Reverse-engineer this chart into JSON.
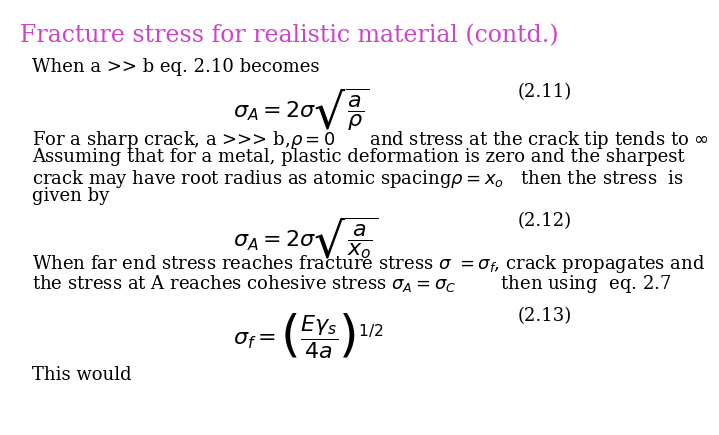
{
  "title": "Fracture stress for realistic material (contd.)",
  "title_color": "#cc44cc",
  "background_color": "#ffffff",
  "title_fontsize": 17,
  "body_fontsize": 13,
  "math_fontsize": 13,
  "line1": "When a >> b eq. 2.10 becomes",
  "eq211": "$\\sigma_A = 2\\sigma\\sqrt{\\dfrac{a}{\\rho}}$",
  "eq211_label": "(2.11)",
  "line2a": "For a sharp crack, a >>> b,$\\rho = 0$      and stress at the crack tip tends to $\\infty$",
  "line2b": "Assuming that for a metal, plastic deformation is zero and the sharpest",
  "line2c": "crack may have root radius as atomic spacing$\\rho = x_o$   then the stress  is",
  "line2d": "given by",
  "eq212": "$\\sigma_A = 2\\sigma\\sqrt{\\dfrac{a}{x_o}}$",
  "eq212_label": "(2.12)",
  "line3a": "When far end stress reaches fracture stress $\\sigma\\ = \\sigma_f$, crack propagates and",
  "line3b": "the stress at A reaches cohesive stress $\\sigma_A = \\sigma_C$        then using  eq. 2.7",
  "eq213": "$\\sigma_f = \\left(\\dfrac{E\\gamma_s}{4a}\\right)^{1/2}$",
  "eq213_label": "(2.13)",
  "line4": "This would"
}
